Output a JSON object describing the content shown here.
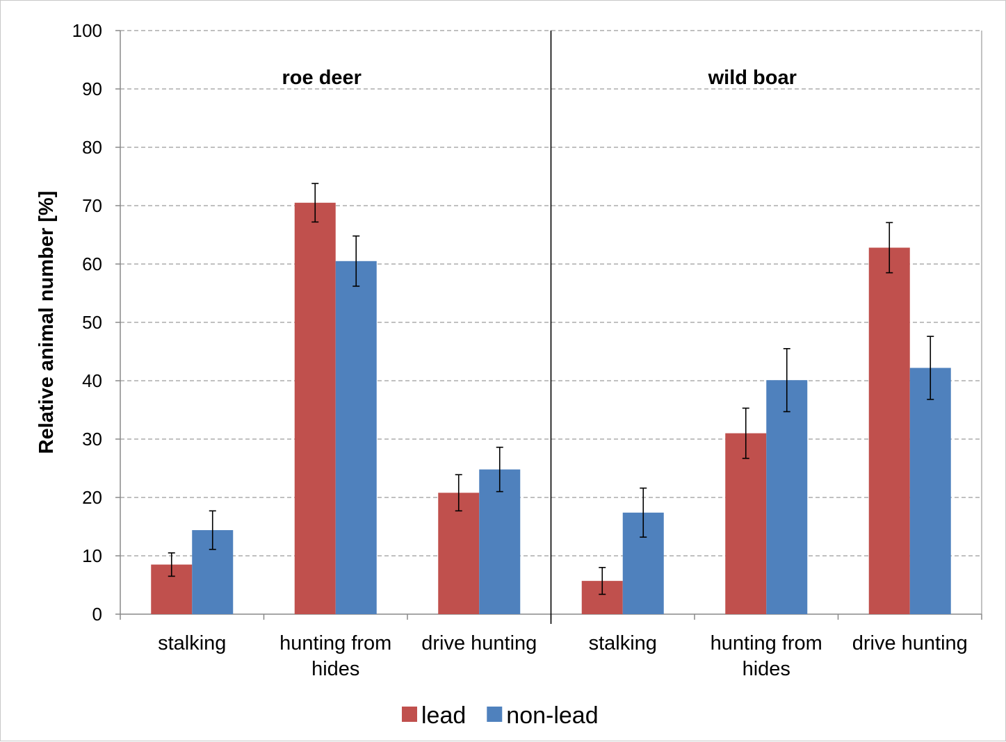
{
  "chart_data": {
    "type": "bar",
    "ylabel": "Relative animal number [%]",
    "ylim": [
      0,
      100
    ],
    "yticks": [
      0,
      10,
      20,
      30,
      40,
      50,
      60,
      70,
      80,
      90,
      100
    ],
    "grid": true,
    "legend_position": "bottom",
    "colors": {
      "lead": "#c0504d",
      "non-lead": "#4f81bd"
    },
    "groups": [
      {
        "name": "roe deer",
        "categories": [
          [
            "stalking"
          ],
          [
            "hunting from",
            "hides"
          ],
          [
            "drive hunting"
          ]
        ],
        "series": [
          {
            "name": "lead",
            "values": [
              8.5,
              70.5,
              20.8
            ],
            "errors": [
              2.0,
              3.3,
              3.1
            ]
          },
          {
            "name": "non-lead",
            "values": [
              14.4,
              60.5,
              24.8
            ],
            "errors": [
              3.3,
              4.3,
              3.8
            ]
          }
        ]
      },
      {
        "name": "wild boar",
        "categories": [
          [
            "stalking"
          ],
          [
            "hunting from",
            "hides"
          ],
          [
            "drive hunting"
          ]
        ],
        "series": [
          {
            "name": "lead",
            "values": [
              5.7,
              31.0,
              62.8
            ],
            "errors": [
              2.3,
              4.3,
              4.3
            ]
          },
          {
            "name": "non-lead",
            "values": [
              17.4,
              40.1,
              42.2
            ],
            "errors": [
              4.2,
              5.4,
              5.4
            ]
          }
        ]
      }
    ],
    "legend": [
      {
        "name": "lead",
        "color": "#c0504d"
      },
      {
        "name": "non-lead",
        "color": "#4f81bd"
      }
    ]
  }
}
